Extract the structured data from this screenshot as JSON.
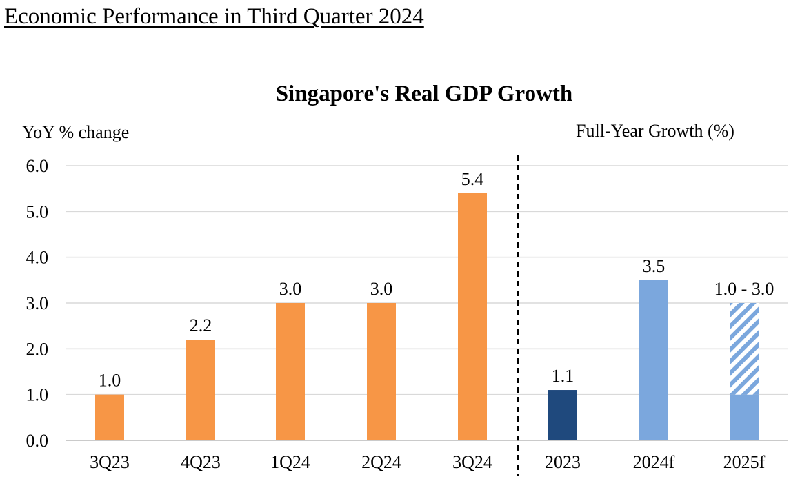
{
  "document": {
    "heading": "Economic Performance in Third Quarter 2024"
  },
  "chart_data": {
    "type": "bar",
    "title": "Singapore's Real GDP Growth",
    "ylabel": "YoY % change",
    "ylim": [
      0,
      6
    ],
    "yticks": [
      "0.0",
      "1.0",
      "2.0",
      "3.0",
      "4.0",
      "5.0",
      "6.0"
    ],
    "grid": true,
    "quarterly": {
      "categories": [
        "3Q23",
        "4Q23",
        "1Q24",
        "2Q24",
        "3Q24"
      ],
      "values": [
        1.0,
        2.2,
        3.0,
        3.0,
        5.4
      ],
      "labels": [
        "1.0",
        "2.2",
        "3.0",
        "3.0",
        "5.4"
      ],
      "color": "#F79646"
    },
    "annual": {
      "label": "Full-Year Growth (%)",
      "categories": [
        "2023",
        "2024f",
        "2025f"
      ],
      "values": [
        1.1,
        3.5,
        [
          1.0,
          3.0
        ]
      ],
      "labels": [
        "1.1",
        "3.5",
        "1.0 - 3.0"
      ],
      "colors": [
        "#1F497D",
        "#7BA7DD",
        "#7BA7DD"
      ],
      "range_fill": "hatched"
    }
  }
}
